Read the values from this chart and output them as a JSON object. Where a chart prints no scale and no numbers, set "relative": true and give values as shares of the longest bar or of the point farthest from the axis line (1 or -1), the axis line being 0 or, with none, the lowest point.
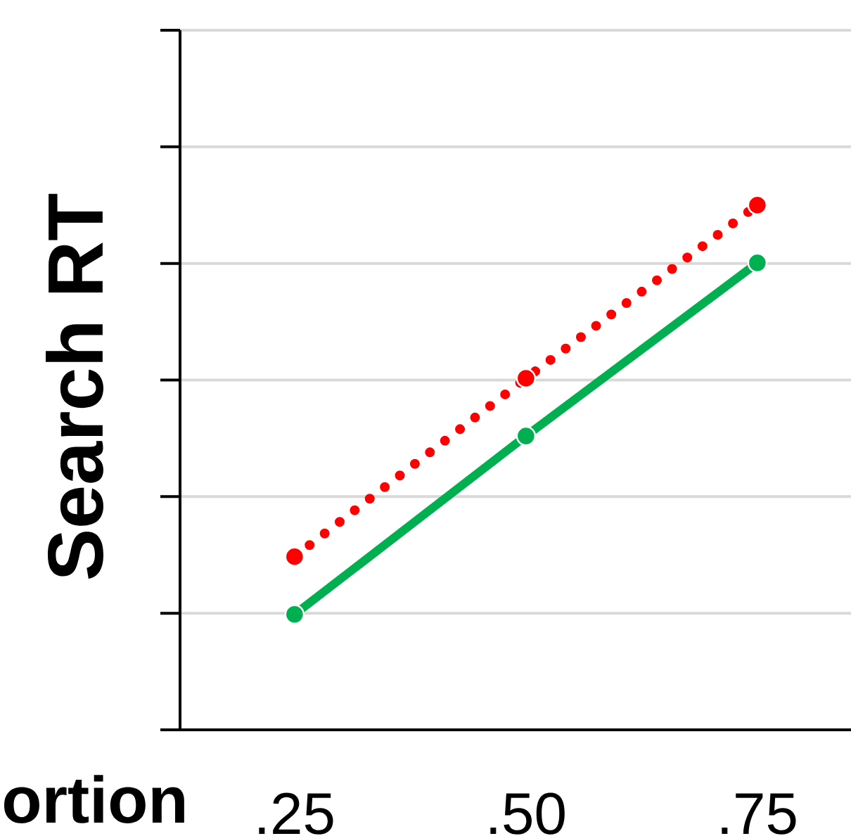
{
  "chart_data": {
    "type": "line",
    "ylabel": "Search RT",
    "xlabel": "ortion",
    "categories": [
      ".25",
      ".50",
      ".75"
    ],
    "relative": true,
    "grid": "y",
    "marker": "circle",
    "series": [
      {
        "color": "#ff0000",
        "line_style": "dotted",
        "values": [
          0.33,
          0.67,
          1
        ]
      },
      {
        "color": "#00b050",
        "line_style": "solid",
        "values": [
          0.22,
          0.56,
          0.89
        ]
      }
    ]
  }
}
